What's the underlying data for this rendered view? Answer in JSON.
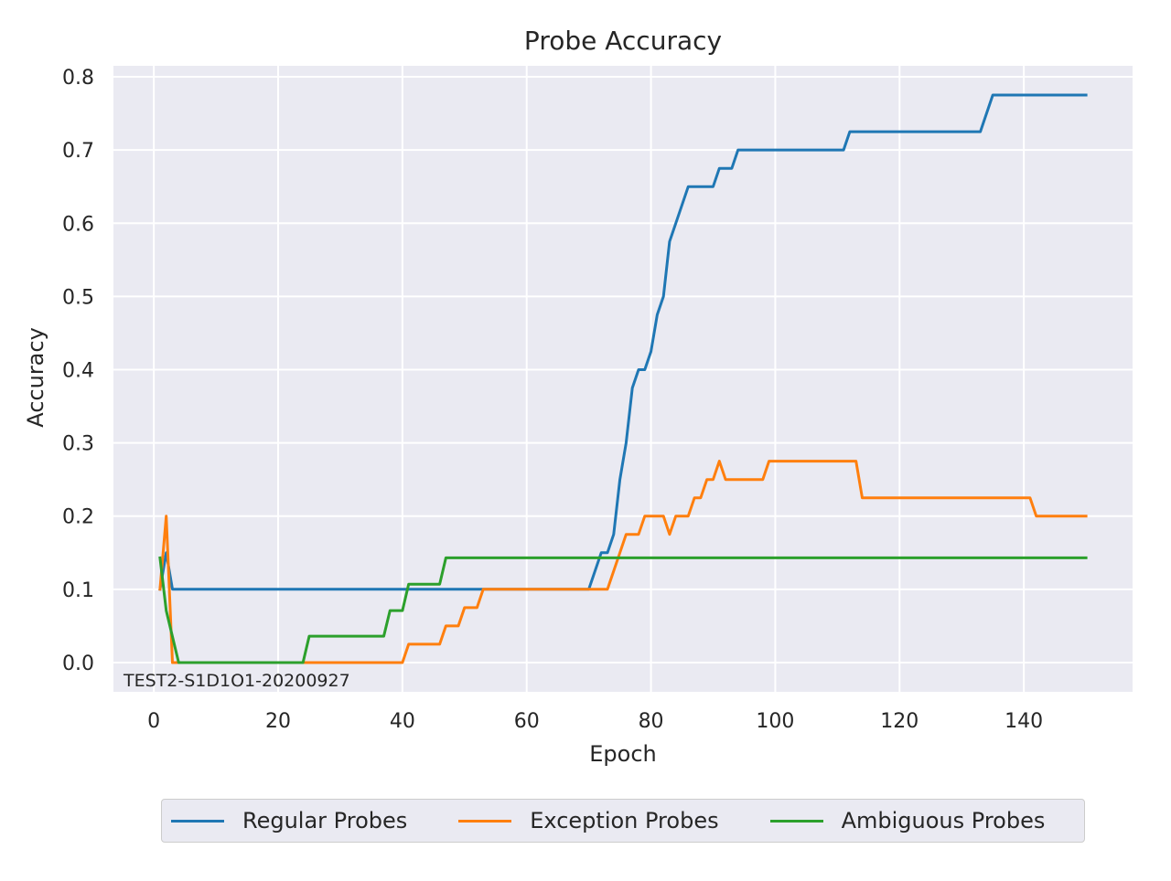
{
  "chart_data": {
    "type": "line",
    "title": "Probe Accuracy",
    "xlabel": "Epoch",
    "ylabel": "Accuracy",
    "annotation": "TEST2-S1D1O1-20200927",
    "xlim": [
      -6.5,
      157.5
    ],
    "ylim": [
      -0.04,
      0.815
    ],
    "xticks": [
      0,
      20,
      40,
      60,
      80,
      100,
      120,
      140
    ],
    "yticks": [
      0.0,
      0.1,
      0.2,
      0.3,
      0.4,
      0.5,
      0.6,
      0.7,
      0.8
    ],
    "xtick_labels": [
      "0",
      "20",
      "40",
      "60",
      "80",
      "100",
      "120",
      "140"
    ],
    "ytick_labels": [
      "0.0",
      "0.1",
      "0.2",
      "0.3",
      "0.4",
      "0.5",
      "0.6",
      "0.7",
      "0.8"
    ],
    "grid": true,
    "legend_position": "bottom-center",
    "series": [
      {
        "name": "Regular Probes",
        "color": "#1f77b4",
        "points": [
          [
            1,
            0.1
          ],
          [
            2,
            0.15
          ],
          [
            3,
            0.1
          ],
          [
            70,
            0.1
          ],
          [
            72,
            0.15
          ],
          [
            73,
            0.15
          ],
          [
            74,
            0.175
          ],
          [
            75,
            0.25
          ],
          [
            76,
            0.3
          ],
          [
            77,
            0.375
          ],
          [
            78,
            0.4
          ],
          [
            79,
            0.4
          ],
          [
            80,
            0.425
          ],
          [
            81,
            0.475
          ],
          [
            82,
            0.5
          ],
          [
            83,
            0.575
          ],
          [
            84,
            0.6
          ],
          [
            86,
            0.65
          ],
          [
            90,
            0.65
          ],
          [
            91,
            0.675
          ],
          [
            93,
            0.675
          ],
          [
            94,
            0.7
          ],
          [
            111,
            0.7
          ],
          [
            112,
            0.725
          ],
          [
            133,
            0.725
          ],
          [
            135,
            0.775
          ],
          [
            150,
            0.775
          ]
        ]
      },
      {
        "name": "Exception Probes",
        "color": "#ff7f0e",
        "points": [
          [
            1,
            0.1
          ],
          [
            2,
            0.2
          ],
          [
            3,
            0.0
          ],
          [
            40,
            0.0
          ],
          [
            41,
            0.025
          ],
          [
            46,
            0.025
          ],
          [
            47,
            0.05
          ],
          [
            49,
            0.05
          ],
          [
            50,
            0.075
          ],
          [
            52,
            0.075
          ],
          [
            53,
            0.1
          ],
          [
            73,
            0.1
          ],
          [
            75,
            0.15
          ],
          [
            76,
            0.175
          ],
          [
            78,
            0.175
          ],
          [
            79,
            0.2
          ],
          [
            82,
            0.2
          ],
          [
            83,
            0.175
          ],
          [
            84,
            0.2
          ],
          [
            86,
            0.2
          ],
          [
            87,
            0.225
          ],
          [
            88,
            0.225
          ],
          [
            89,
            0.25
          ],
          [
            90,
            0.25
          ],
          [
            91,
            0.275
          ],
          [
            92,
            0.25
          ],
          [
            98,
            0.25
          ],
          [
            99,
            0.275
          ],
          [
            113,
            0.275
          ],
          [
            114,
            0.225
          ],
          [
            141,
            0.225
          ],
          [
            142,
            0.2
          ],
          [
            150,
            0.2
          ]
        ]
      },
      {
        "name": "Ambiguous Probes",
        "color": "#2ca02c",
        "points": [
          [
            1,
            0.143
          ],
          [
            2,
            0.071
          ],
          [
            4,
            0.0
          ],
          [
            24,
            0.0
          ],
          [
            25,
            0.036
          ],
          [
            37,
            0.036
          ],
          [
            38,
            0.071
          ],
          [
            40,
            0.071
          ],
          [
            41,
            0.107
          ],
          [
            46,
            0.107
          ],
          [
            47,
            0.143
          ],
          [
            150,
            0.143
          ]
        ]
      }
    ]
  }
}
